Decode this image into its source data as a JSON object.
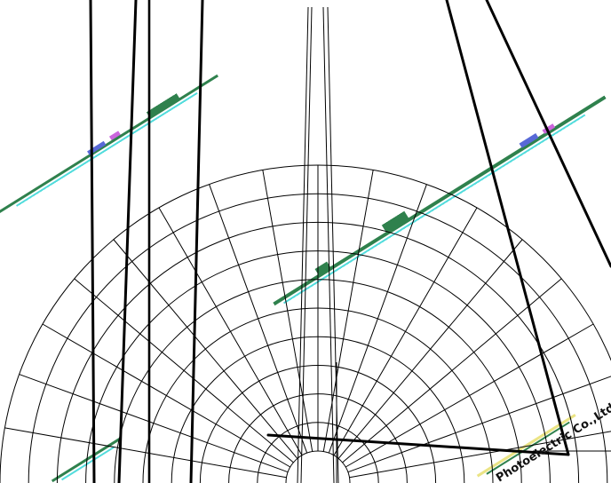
{
  "diagram": {
    "type": "polar-grid",
    "ring_count": 10,
    "spoke_step_degrees": 10,
    "colors": {
      "background": "#ffffff",
      "grid_line": "#000000",
      "heavy_line": "#000000",
      "watermark_green": "#0a6b2e",
      "watermark_cyan": "#33d6d6",
      "watermark_blue": "#3a4fd0",
      "watermark_magenta": "#c24ad6"
    }
  },
  "watermarks": {
    "company_text": "Photoelectric Co.,Ltd"
  }
}
